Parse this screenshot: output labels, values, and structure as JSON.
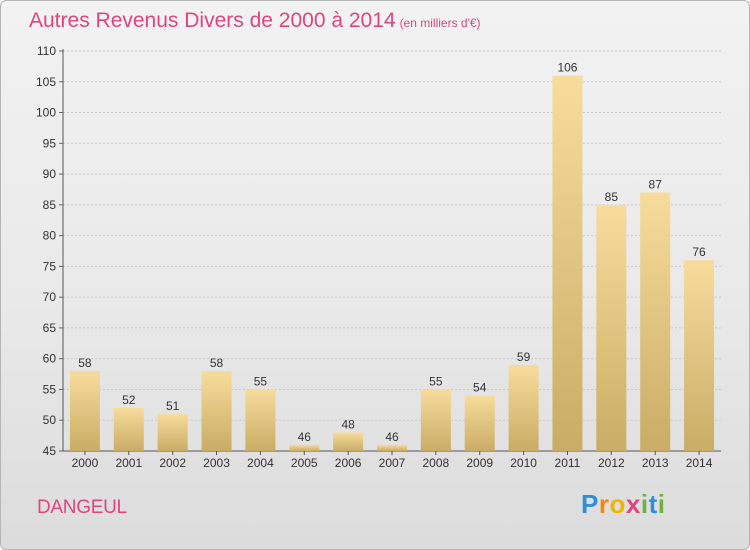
{
  "title": "Autres Revenus Divers de 2000 à 2014",
  "subtitle": "(en milliers d'€)",
  "commune": "DANGEUL",
  "logo": {
    "letters": [
      "P",
      "r",
      "o",
      "x",
      "i",
      "t",
      "i"
    ],
    "colors": [
      "#2f8fd8",
      "#f08a00",
      "#f2b400",
      "#e0457f",
      "#6cb33f",
      "#2f8fd8",
      "#6cb33f"
    ]
  },
  "colors": {
    "accent": "#e0457f",
    "bar_light": "#f7dc9c",
    "bar_dark": "#c9ad66"
  },
  "chart_data": {
    "type": "bar",
    "title": "Autres Revenus Divers de 2000 à 2014",
    "subtitle": "(en milliers d'€)",
    "categories": [
      "2000",
      "2001",
      "2002",
      "2003",
      "2004",
      "2005",
      "2006",
      "2007",
      "2008",
      "2009",
      "2010",
      "2011",
      "2012",
      "2013",
      "2014"
    ],
    "values": [
      58,
      52,
      51,
      58,
      55,
      46,
      48,
      46,
      55,
      54,
      59,
      106,
      85,
      87,
      76
    ],
    "ylim": [
      45,
      110
    ],
    "yticks": [
      45,
      50,
      55,
      60,
      65,
      70,
      75,
      80,
      85,
      90,
      95,
      100,
      105,
      110
    ],
    "grid": true
  }
}
